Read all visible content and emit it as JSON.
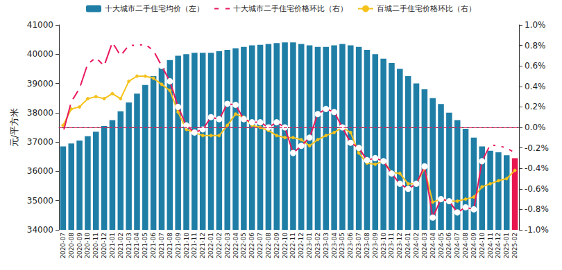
{
  "chart_data": {
    "type": "bar",
    "ylabel": "元/平方米",
    "legend": "top",
    "grid": false,
    "categories": [
      "2020-07",
      "2020-08",
      "2020-09",
      "2020-10",
      "2020-11",
      "2020-12",
      "2021-01",
      "2021-02",
      "2021-03",
      "2021-04",
      "2021-05",
      "2021-06",
      "2021-07",
      "2021-08",
      "2021-09",
      "2021-10",
      "2021-11",
      "2021-12",
      "2022-01",
      "2022-02",
      "2022-03",
      "2022-04",
      "2022-05",
      "2022-06",
      "2022-07",
      "2022-08",
      "2022-09",
      "2022-10",
      "2022-11",
      "2022-12",
      "2023-01",
      "2023-02",
      "2023-03",
      "2023-04",
      "2023-05",
      "2023-06",
      "2023-07",
      "2023-08",
      "2023-09",
      "2023-10",
      "2023-11",
      "2023-12",
      "2024-01",
      "2024-02",
      "2024-03",
      "2024-04",
      "2024-05",
      "2024-06",
      "2024-07",
      "2024-08",
      "2024-09",
      "2024-10",
      "2024-11",
      "2024-12",
      "2025-01",
      "2025-02"
    ],
    "ylim": [
      34000,
      41000
    ],
    "yticks": [
      34000,
      35000,
      36000,
      37000,
      38000,
      39000,
      40000,
      41000
    ],
    "y2lim": [
      -1.0,
      1.0
    ],
    "y2ticks": [
      {
        "value": -1.0,
        "label": "-1.0%"
      },
      {
        "value": -0.8,
        "label": "-0.8%"
      },
      {
        "value": -0.6,
        "label": "-0.6%"
      },
      {
        "value": -0.4,
        "label": "-0.4%"
      },
      {
        "value": -0.2,
        "label": "-0.2%"
      },
      {
        "value": 0.0,
        "label": "0.0%"
      },
      {
        "value": 0.2,
        "label": "0.2%"
      },
      {
        "value": 0.4,
        "label": "0.4%"
      },
      {
        "value": 0.6,
        "label": "0.6%"
      },
      {
        "value": 0.8,
        "label": "0.8%"
      },
      {
        "value": 1.0,
        "label": "1.0%"
      }
    ],
    "ref_line": {
      "value": 0.0,
      "axis": "y2",
      "color": "#e8175d",
      "line_style": "dashed"
    },
    "series": [
      {
        "name": "十大城市二手住宅均价（左）",
        "type": "bar",
        "color": "#1f7ea6",
        "colors": [
          "#1f7ea6",
          "#1f7ea6",
          "#1f7ea6",
          "#1f7ea6",
          "#1f7ea6",
          "#1f7ea6",
          "#1f7ea6",
          "#1f7ea6",
          "#1f7ea6",
          "#1f7ea6",
          "#1f7ea6",
          "#1f7ea6",
          "#1f7ea6",
          "#1f7ea6",
          "#1f7ea6",
          "#1f7ea6",
          "#1f7ea6",
          "#1f7ea6",
          "#1f7ea6",
          "#1f7ea6",
          "#1f7ea6",
          "#1f7ea6",
          "#1f7ea6",
          "#1f7ea6",
          "#1f7ea6",
          "#1f7ea6",
          "#1f7ea6",
          "#1f7ea6",
          "#1f7ea6",
          "#1f7ea6",
          "#1f7ea6",
          "#1f7ea6",
          "#1f7ea6",
          "#1f7ea6",
          "#1f7ea6",
          "#1f7ea6",
          "#1f7ea6",
          "#1f7ea6",
          "#1f7ea6",
          "#1f7ea6",
          "#1f7ea6",
          "#1f7ea6",
          "#1f7ea6",
          "#1f7ea6",
          "#1f7ea6",
          "#1f7ea6",
          "#1f7ea6",
          "#1f7ea6",
          "#1f7ea6",
          "#1f7ea6",
          "#1f7ea6",
          "#1f7ea6",
          "#1f7ea6",
          "#1f7ea6",
          "#1f7ea6",
          "#e8174f"
        ],
        "values": [
          36850,
          36950,
          37050,
          37200,
          37350,
          37550,
          37750,
          38050,
          38350,
          38650,
          38950,
          39250,
          39550,
          39800,
          39950,
          40000,
          40050,
          40050,
          40050,
          40100,
          40150,
          40200,
          40250,
          40300,
          40320,
          40350,
          40380,
          40400,
          40400,
          40350,
          40300,
          40250,
          40250,
          40300,
          40350,
          40300,
          40250,
          40150,
          40000,
          39850,
          39700,
          39500,
          39250,
          39000,
          38800,
          38500,
          38300,
          38000,
          37750,
          37450,
          37150,
          36850,
          36700,
          36650,
          36550,
          36450
        ]
      },
      {
        "name": "十大城市二手住宅价格环比（右）",
        "type": "line",
        "axis": "y2",
        "color": "#e8175d",
        "marker": "emptyCircle",
        "values": [
          -0.05,
          0.25,
          0.38,
          0.62,
          0.68,
          0.6,
          0.83,
          0.7,
          0.8,
          0.8,
          0.81,
          0.75,
          0.6,
          0.45,
          0.2,
          0.02,
          -0.05,
          -0.02,
          0.1,
          0.08,
          0.23,
          0.22,
          0.08,
          0.05,
          0.05,
          0.0,
          0.05,
          0.0,
          -0.25,
          -0.18,
          -0.1,
          0.13,
          0.18,
          0.15,
          0.0,
          -0.15,
          -0.2,
          -0.32,
          -0.3,
          -0.33,
          -0.45,
          -0.55,
          -0.6,
          -0.55,
          -0.38,
          -0.88,
          -0.7,
          -0.72,
          -0.83,
          -0.78,
          -0.8,
          -0.33,
          -0.17,
          -0.18,
          -0.2,
          -0.25
        ]
      },
      {
        "name": "百城二手住宅价格环比（右）",
        "type": "line",
        "axis": "y2",
        "color": "#f5c21b",
        "marker": "circle",
        "values": [
          0.02,
          0.18,
          0.2,
          0.28,
          0.3,
          0.28,
          0.33,
          0.28,
          0.45,
          0.5,
          0.5,
          0.48,
          0.42,
          0.36,
          0.15,
          -0.02,
          -0.05,
          -0.08,
          -0.08,
          -0.08,
          0.02,
          0.13,
          0.1,
          0.02,
          0.0,
          -0.03,
          -0.08,
          -0.1,
          -0.1,
          -0.12,
          -0.18,
          -0.12,
          -0.08,
          -0.05,
          0.0,
          -0.05,
          -0.25,
          -0.35,
          -0.36,
          -0.33,
          -0.44,
          -0.45,
          -0.55,
          -0.55,
          -0.4,
          -0.73,
          -0.7,
          -0.72,
          -0.72,
          -0.7,
          -0.68,
          -0.58,
          -0.55,
          -0.52,
          -0.5,
          -0.42
        ]
      }
    ]
  }
}
